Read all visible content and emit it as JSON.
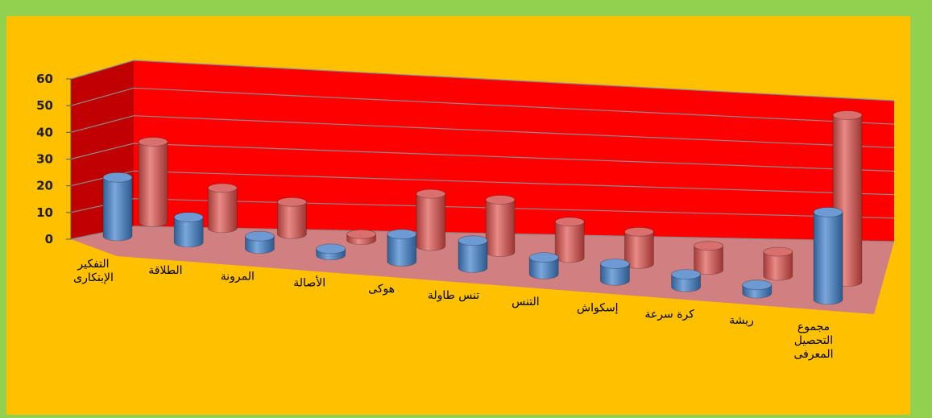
{
  "chart_data": {
    "type": "bar",
    "style": "3d-cylinder",
    "title": "",
    "xlabel": "",
    "ylabel": "",
    "ylim": [
      0,
      60
    ],
    "yticks": [
      0,
      10,
      20,
      30,
      40,
      50,
      60
    ],
    "grid": true,
    "legend": "none",
    "categories": [
      [
        "التفكير",
        "الإبتكارى"
      ],
      [
        "الطلاقة"
      ],
      [
        "المرونة"
      ],
      [
        "الأصالة"
      ],
      [
        "هوكى"
      ],
      [
        "تنس طاولة"
      ],
      [
        "التنس"
      ],
      [
        "إسكواش"
      ],
      [
        "كرة سرعة"
      ],
      [
        "ريشة"
      ],
      [
        "مجموع",
        "التحصيل",
        "المعرفى"
      ]
    ],
    "series": [
      {
        "values": [
          14,
          6,
          3,
          1.5,
          6.5,
          6.5,
          4,
          4,
          3,
          2,
          31
        ]
      },
      {
        "values": [
          20,
          10,
          8,
          1.5,
          13,
          13,
          9,
          8,
          6,
          6,
          60
        ]
      }
    ],
    "colors": {
      "series_front": "#4f81bd",
      "series_back": "#c0504d",
      "back_wall": "#ff0000",
      "side_wall": "#c00000",
      "floor": "#d08080",
      "plot_background": "#ffc000",
      "outer_border": "#92d050"
    }
  }
}
